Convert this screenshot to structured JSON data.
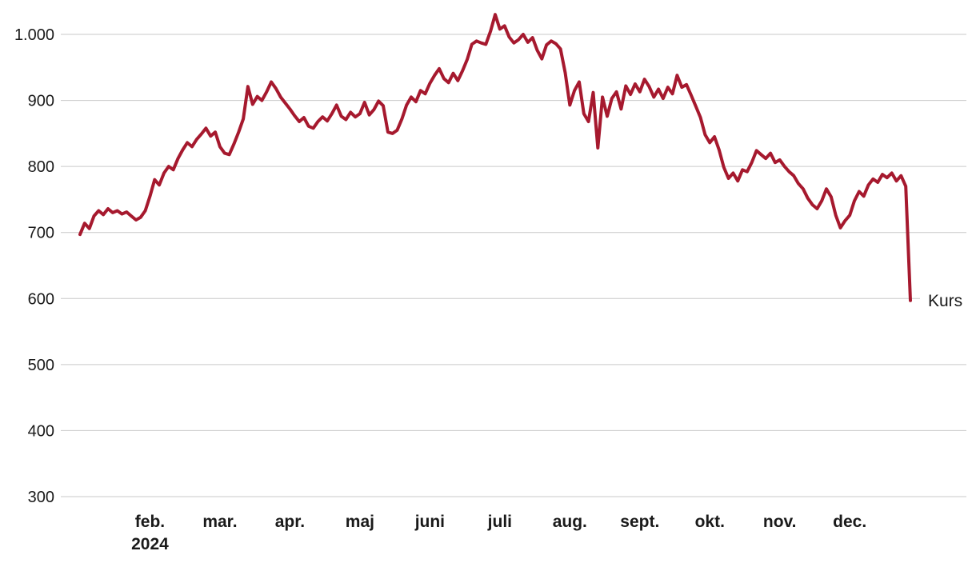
{
  "chart_data": {
    "type": "line",
    "title": "",
    "xlabel": "",
    "ylabel": "",
    "grid": "horizontal",
    "legend_position": "end-of-line-label",
    "end_label": "Kurs",
    "ylim": [
      300,
      1030
    ],
    "y_ticks": [
      {
        "value": 1000,
        "label": "1.000"
      },
      {
        "value": 900,
        "label": "900"
      },
      {
        "value": 800,
        "label": "800"
      },
      {
        "value": 700,
        "label": "700"
      },
      {
        "value": 600,
        "label": "600"
      },
      {
        "value": 500,
        "label": "500"
      },
      {
        "value": 400,
        "label": "400"
      },
      {
        "value": 300,
        "label": "300"
      }
    ],
    "x_ticks": [
      {
        "label": "feb.",
        "index": 15,
        "year_below": "2024"
      },
      {
        "label": "mar.",
        "index": 30
      },
      {
        "label": "apr.",
        "index": 45
      },
      {
        "label": "maj",
        "index": 60
      },
      {
        "label": "juni",
        "index": 75
      },
      {
        "label": "juli",
        "index": 90
      },
      {
        "label": "aug.",
        "index": 105
      },
      {
        "label": "sept.",
        "index": 120
      },
      {
        "label": "okt.",
        "index": 135
      },
      {
        "label": "nov.",
        "index": 150
      },
      {
        "label": "dec.",
        "index": 165
      }
    ],
    "colors": {
      "line": "#a6192e",
      "grid": "#c9c9c9",
      "axis_text": "#1a1a1a"
    },
    "series": [
      {
        "name": "Kurs",
        "color": "#a6192e",
        "values": [
          697,
          714,
          706,
          725,
          733,
          727,
          736,
          730,
          733,
          728,
          731,
          725,
          719,
          723,
          733,
          755,
          780,
          772,
          790,
          800,
          795,
          812,
          825,
          836,
          830,
          841,
          849,
          858,
          846,
          852,
          830,
          820,
          818,
          834,
          852,
          872,
          921,
          894,
          906,
          900,
          913,
          928,
          918,
          905,
          896,
          887,
          877,
          868,
          874,
          861,
          858,
          868,
          875,
          869,
          880,
          893,
          876,
          871,
          882,
          875,
          880,
          897,
          878,
          886,
          899,
          892,
          852,
          850,
          855,
          872,
          893,
          905,
          898,
          915,
          910,
          926,
          938,
          948,
          933,
          927,
          941,
          930,
          945,
          962,
          985,
          990,
          987,
          985,
          1005,
          1030,
          1008,
          1013,
          996,
          987,
          992,
          1000,
          988,
          995,
          976,
          963,
          984,
          990,
          986,
          978,
          942,
          893,
          915,
          928,
          880,
          868,
          912,
          828,
          905,
          876,
          903,
          913,
          887,
          922,
          909,
          925,
          913,
          932,
          921,
          905,
          917,
          903,
          920,
          910,
          938,
          920,
          924,
          908,
          891,
          874,
          848,
          836,
          845,
          825,
          799,
          782,
          790,
          778,
          795,
          792,
          806,
          824,
          818,
          812,
          820,
          806,
          810,
          800,
          792,
          786,
          774,
          766,
          752,
          742,
          736,
          748,
          766,
          754,
          726,
          707,
          718,
          726,
          748,
          762,
          755,
          772,
          781,
          776,
          788,
          783,
          790,
          778,
          786,
          770,
          597
        ]
      }
    ]
  }
}
